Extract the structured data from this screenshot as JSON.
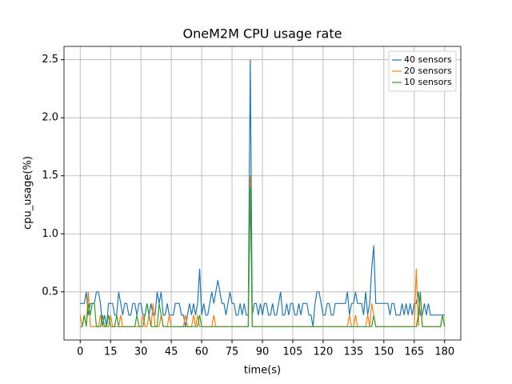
{
  "chart_data": {
    "type": "line",
    "title": "OneM2M CPU usage rate",
    "x_label": "time(s)",
    "y_label": "cpu_usage(%)",
    "x": [
      0,
      1,
      2,
      3,
      4,
      5,
      6,
      7,
      8,
      9,
      10,
      11,
      12,
      13,
      14,
      15,
      16,
      17,
      18,
      19,
      20,
      21,
      22,
      23,
      24,
      25,
      26,
      27,
      28,
      29,
      30,
      31,
      32,
      33,
      34,
      35,
      36,
      37,
      38,
      39,
      40,
      41,
      42,
      43,
      44,
      45,
      46,
      47,
      48,
      49,
      50,
      51,
      52,
      53,
      54,
      55,
      56,
      57,
      58,
      59,
      60,
      61,
      62,
      63,
      64,
      65,
      66,
      67,
      68,
      69,
      70,
      71,
      72,
      73,
      74,
      75,
      76,
      77,
      78,
      79,
      80,
      81,
      82,
      83,
      84,
      85,
      86,
      87,
      88,
      89,
      90,
      91,
      92,
      93,
      94,
      95,
      96,
      97,
      98,
      99,
      100,
      101,
      102,
      103,
      104,
      105,
      106,
      107,
      108,
      109,
      110,
      111,
      112,
      113,
      114,
      115,
      116,
      117,
      118,
      119,
      120,
      121,
      122,
      123,
      124,
      125,
      126,
      127,
      128,
      129,
      130,
      131,
      132,
      133,
      134,
      135,
      136,
      137,
      138,
      139,
      140,
      141,
      142,
      143,
      144,
      145,
      146,
      147,
      148,
      149,
      150,
      151,
      152,
      153,
      154,
      155,
      156,
      157,
      158,
      159,
      160,
      161,
      162,
      163,
      164,
      165,
      166,
      167,
      168,
      169,
      170,
      171,
      172,
      173,
      174,
      175,
      176,
      177,
      178,
      179,
      180
    ],
    "series": [
      {
        "name": "40 sensors",
        "color": "#1f77b4",
        "values": [
          0.4,
          0.4,
          0.4,
          0.5,
          0.3,
          0.4,
          0.4,
          0.4,
          0.5,
          0.5,
          0.4,
          0.2,
          0.3,
          0.2,
          0.4,
          0.4,
          0.4,
          0.3,
          0.3,
          0.5,
          0.4,
          0.3,
          0.4,
          0.4,
          0.3,
          0.3,
          0.4,
          0.4,
          0.3,
          0.4,
          0.4,
          0.3,
          0.3,
          0.4,
          0.3,
          0.4,
          0.3,
          0.3,
          0.5,
          0.4,
          0.5,
          0.3,
          0.3,
          0.4,
          0.3,
          0.3,
          0.3,
          0.4,
          0.4,
          0.4,
          0.3,
          0.3,
          0.2,
          0.3,
          0.4,
          0.3,
          0.4,
          0.3,
          0.4,
          0.7,
          0.3,
          0.4,
          0.3,
          0.3,
          0.4,
          0.5,
          0.4,
          0.5,
          0.6,
          0.5,
          0.4,
          0.4,
          0.3,
          0.4,
          0.5,
          0.4,
          0.4,
          0.3,
          0.3,
          0.4,
          0.3,
          0.4,
          0.3,
          0.3,
          2.5,
          0.3,
          0.4,
          0.4,
          0.3,
          0.4,
          0.3,
          0.4,
          0.4,
          0.3,
          0.3,
          0.4,
          0.3,
          0.3,
          0.4,
          0.5,
          0.3,
          0.3,
          0.4,
          0.3,
          0.4,
          0.4,
          0.3,
          0.3,
          0.4,
          0.3,
          0.4,
          0.4,
          0.4,
          0.3,
          0.3,
          0.2,
          0.4,
          0.5,
          0.5,
          0.4,
          0.3,
          0.3,
          0.4,
          0.4,
          0.3,
          0.3,
          0.4,
          0.4,
          0.4,
          0.4,
          0.4,
          0.4,
          0.5,
          0.3,
          0.4,
          0.4,
          0.5,
          0.4,
          0.4,
          0.4,
          0.3,
          0.5,
          0.3,
          0.4,
          0.7,
          0.9,
          0.4,
          0.4,
          0.4,
          0.4,
          0.4,
          0.4,
          0.4,
          0.3,
          0.4,
          0.4,
          0.3,
          0.3,
          0.3,
          0.4,
          0.3,
          0.4,
          0.3,
          0.4,
          0.3,
          0.4,
          0.4,
          0.5,
          0.3,
          0.3,
          0.4,
          0.3,
          0.4,
          0.3,
          0.3,
          0.3,
          0.3,
          0.3,
          0.3,
          0.3,
          0.3
        ]
      },
      {
        "name": "20 sensors",
        "color": "#ff7f0e",
        "values": [
          0.3,
          0.2,
          0.3,
          0.2,
          0.5,
          0.2,
          0.2,
          0.2,
          0.2,
          0.2,
          0.3,
          0.2,
          0.2,
          0.2,
          0.2,
          0.3,
          0.2,
          0.2,
          0.2,
          0.2,
          0.3,
          0.2,
          0.2,
          0.2,
          0.2,
          0.2,
          0.2,
          0.2,
          0.2,
          0.2,
          0.2,
          0.3,
          0.2,
          0.2,
          0.3,
          0.2,
          0.4,
          0.2,
          0.2,
          0.2,
          0.3,
          0.2,
          0.2,
          0.2,
          0.3,
          0.2,
          0.2,
          0.2,
          0.2,
          0.2,
          0.2,
          0.2,
          0.3,
          0.2,
          0.2,
          0.2,
          0.3,
          0.2,
          0.3,
          0.2,
          0.2,
          0.2,
          0.2,
          0.2,
          0.2,
          0.2,
          0.3,
          0.2,
          0.2,
          0.2,
          0.2,
          0.2,
          0.2,
          0.2,
          0.2,
          0.2,
          0.2,
          0.2,
          0.2,
          0.2,
          0.2,
          0.2,
          0.2,
          0.2,
          1.5,
          0.2,
          0.2,
          0.2,
          0.2,
          0.2,
          0.2,
          0.2,
          0.2,
          0.2,
          0.2,
          0.2,
          0.2,
          0.2,
          0.2,
          0.2,
          0.2,
          0.2,
          0.2,
          0.2,
          0.2,
          0.2,
          0.2,
          0.2,
          0.2,
          0.2,
          0.2,
          0.2,
          0.2,
          0.2,
          0.2,
          0.2,
          0.2,
          0.2,
          0.2,
          0.2,
          0.2,
          0.2,
          0.2,
          0.2,
          0.2,
          0.2,
          0.2,
          0.2,
          0.2,
          0.2,
          0.2,
          0.2,
          0.2,
          0.3,
          0.2,
          0.2,
          0.3,
          0.2,
          0.2,
          0.2,
          0.2,
          0.2,
          0.3,
          0.2,
          0.4,
          0.3,
          0.2,
          0.2,
          0.2,
          0.2,
          0.2,
          0.2,
          0.2,
          0.2,
          0.2,
          0.2,
          0.2,
          0.2,
          0.2,
          0.2,
          0.2,
          0.2,
          0.2,
          0.2,
          0.2,
          0.2,
          0.7,
          0.2,
          0.5,
          0.2,
          0.2,
          0.2,
          0.2,
          0.2,
          0.2,
          0.2,
          0.2,
          0.2,
          0.2,
          0.3,
          0.2
        ]
      },
      {
        "name": "10 sensors",
        "color": "#2ca02c",
        "values": [
          0.2,
          0.2,
          0.3,
          0.2,
          0.4,
          0.3,
          0.4,
          0.4,
          0.2,
          0.2,
          0.2,
          0.3,
          0.2,
          0.2,
          0.3,
          0.2,
          0.2,
          0.2,
          0.3,
          0.2,
          0.2,
          0.2,
          0.2,
          0.2,
          0.2,
          0.2,
          0.2,
          0.2,
          0.3,
          0.2,
          0.2,
          0.2,
          0.3,
          0.4,
          0.3,
          0.2,
          0.2,
          0.2,
          0.2,
          0.4,
          0.3,
          0.2,
          0.2,
          0.2,
          0.2,
          0.2,
          0.2,
          0.2,
          0.2,
          0.2,
          0.2,
          0.2,
          0.2,
          0.2,
          0.2,
          0.2,
          0.2,
          0.2,
          0.2,
          0.3,
          0.2,
          0.2,
          0.2,
          0.2,
          0.2,
          0.2,
          0.2,
          0.2,
          0.2,
          0.2,
          0.2,
          0.2,
          0.2,
          0.2,
          0.2,
          0.2,
          0.2,
          0.2,
          0.2,
          0.2,
          0.2,
          0.2,
          0.2,
          0.2,
          1.4,
          0.2,
          0.2,
          0.2,
          0.2,
          0.2,
          0.2,
          0.2,
          0.2,
          0.2,
          0.2,
          0.2,
          0.2,
          0.2,
          0.2,
          0.2,
          0.2,
          0.2,
          0.2,
          0.2,
          0.2,
          0.2,
          0.2,
          0.2,
          0.2,
          0.2,
          0.2,
          0.2,
          0.2,
          0.2,
          0.2,
          0.2,
          0.2,
          0.2,
          0.2,
          0.2,
          0.2,
          0.2,
          0.2,
          0.2,
          0.2,
          0.2,
          0.2,
          0.2,
          0.2,
          0.2,
          0.2,
          0.2,
          0.2,
          0.2,
          0.2,
          0.2,
          0.2,
          0.2,
          0.2,
          0.2,
          0.2,
          0.2,
          0.2,
          0.2,
          0.2,
          0.3,
          0.2,
          0.2,
          0.2,
          0.2,
          0.2,
          0.2,
          0.2,
          0.2,
          0.2,
          0.2,
          0.2,
          0.2,
          0.2,
          0.2,
          0.2,
          0.2,
          0.2,
          0.2,
          0.2,
          0.2,
          0.2,
          0.3,
          0.5,
          0.2,
          0.2,
          0.2,
          0.2,
          0.2,
          0.2,
          0.2,
          0.2,
          0.2,
          0.2,
          0.3,
          0.2
        ]
      }
    ],
    "xlim": [
      -8,
      188
    ],
    "xticks": [
      0,
      15,
      30,
      45,
      60,
      75,
      90,
      105,
      120,
      135,
      150,
      165,
      180
    ],
    "ylim": [
      0.085,
      2.615
    ],
    "yticks": [
      0.5,
      {
        "value": 1,
        "label": "1.0"
      },
      1.5,
      {
        "value": 2,
        "label": "2.0"
      },
      2.5
    ],
    "grid": true,
    "legend": "upper right"
  }
}
